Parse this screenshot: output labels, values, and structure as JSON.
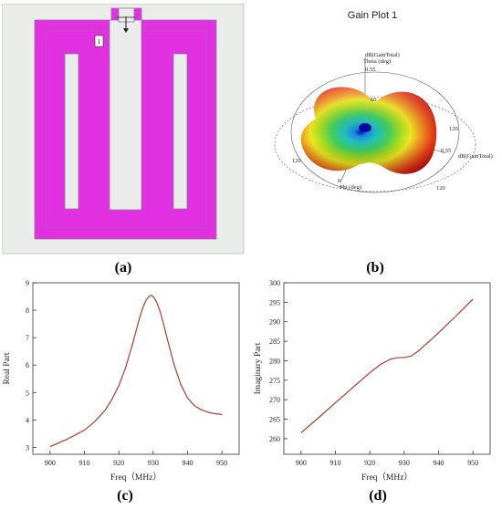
{
  "captions": {
    "a": "(a)",
    "b": "(b)",
    "c": "(c)",
    "d": "(d)"
  },
  "antenna": {
    "port_label": "1"
  },
  "gain_plot": {
    "title": "Gain Plot 1",
    "theta_label": "Theta (deg)",
    "phi_label": "Phi (deg)",
    "gain_label": "dB(GainTotal)",
    "top_axis_label": "dB(GainTotal)",
    "tick_55_top": "0.55",
    "tick_55_right": "0.55",
    "tick_60": "60",
    "tick_120_right": "120",
    "tick_120_left": "120",
    "tick_120_bottom": "120",
    "tick_0": "0"
  },
  "chart_data": [
    {
      "type": "line",
      "xlabel": "Freq（MHz）",
      "ylabel": "Real Part",
      "xlim": [
        895,
        955
      ],
      "ylim": [
        2.75,
        9
      ],
      "x_ticks": [
        "900",
        "910",
        "920",
        "930",
        "940",
        "950"
      ],
      "y_ticks": [
        "3",
        "4",
        "5",
        "6",
        "7",
        "8",
        "9"
      ],
      "color": "#b03a2e",
      "series": [
        {
          "x": [
            900,
            905,
            910,
            913,
            916,
            918,
            920,
            922,
            924,
            926,
            927,
            928,
            929,
            929.5,
            930,
            931,
            932,
            933,
            934,
            936,
            938,
            940,
            942,
            944,
            946,
            948,
            950
          ],
          "y": [
            3.03,
            3.3,
            3.63,
            3.94,
            4.35,
            4.75,
            5.25,
            5.92,
            6.77,
            7.7,
            8.1,
            8.38,
            8.52,
            8.54,
            8.5,
            8.3,
            7.96,
            7.5,
            7.0,
            6.05,
            5.3,
            4.8,
            4.52,
            4.37,
            4.28,
            4.23,
            4.2
          ]
        }
      ]
    },
    {
      "type": "line",
      "xlabel": "Freq（MHz）",
      "ylabel": "Imaginary Part",
      "xlim": [
        895,
        955
      ],
      "ylim": [
        256,
        300
      ],
      "x_ticks": [
        "900",
        "910",
        "920",
        "930",
        "940",
        "950"
      ],
      "y_ticks": [
        "260",
        "265",
        "270",
        "275",
        "280",
        "285",
        "290",
        "295",
        "300"
      ],
      "color": "#b03a2e",
      "series": [
        {
          "x": [
            900,
            905,
            910,
            915,
            920,
            923,
            926,
            928,
            930,
            932,
            934,
            936,
            938,
            940,
            945,
            950
          ],
          "y": [
            261.5,
            265.3,
            269.2,
            273.1,
            276.9,
            279.0,
            280.4,
            280.8,
            280.8,
            281.2,
            282.4,
            284.0,
            285.5,
            287.2,
            291.4,
            295.8
          ]
        }
      ]
    }
  ]
}
